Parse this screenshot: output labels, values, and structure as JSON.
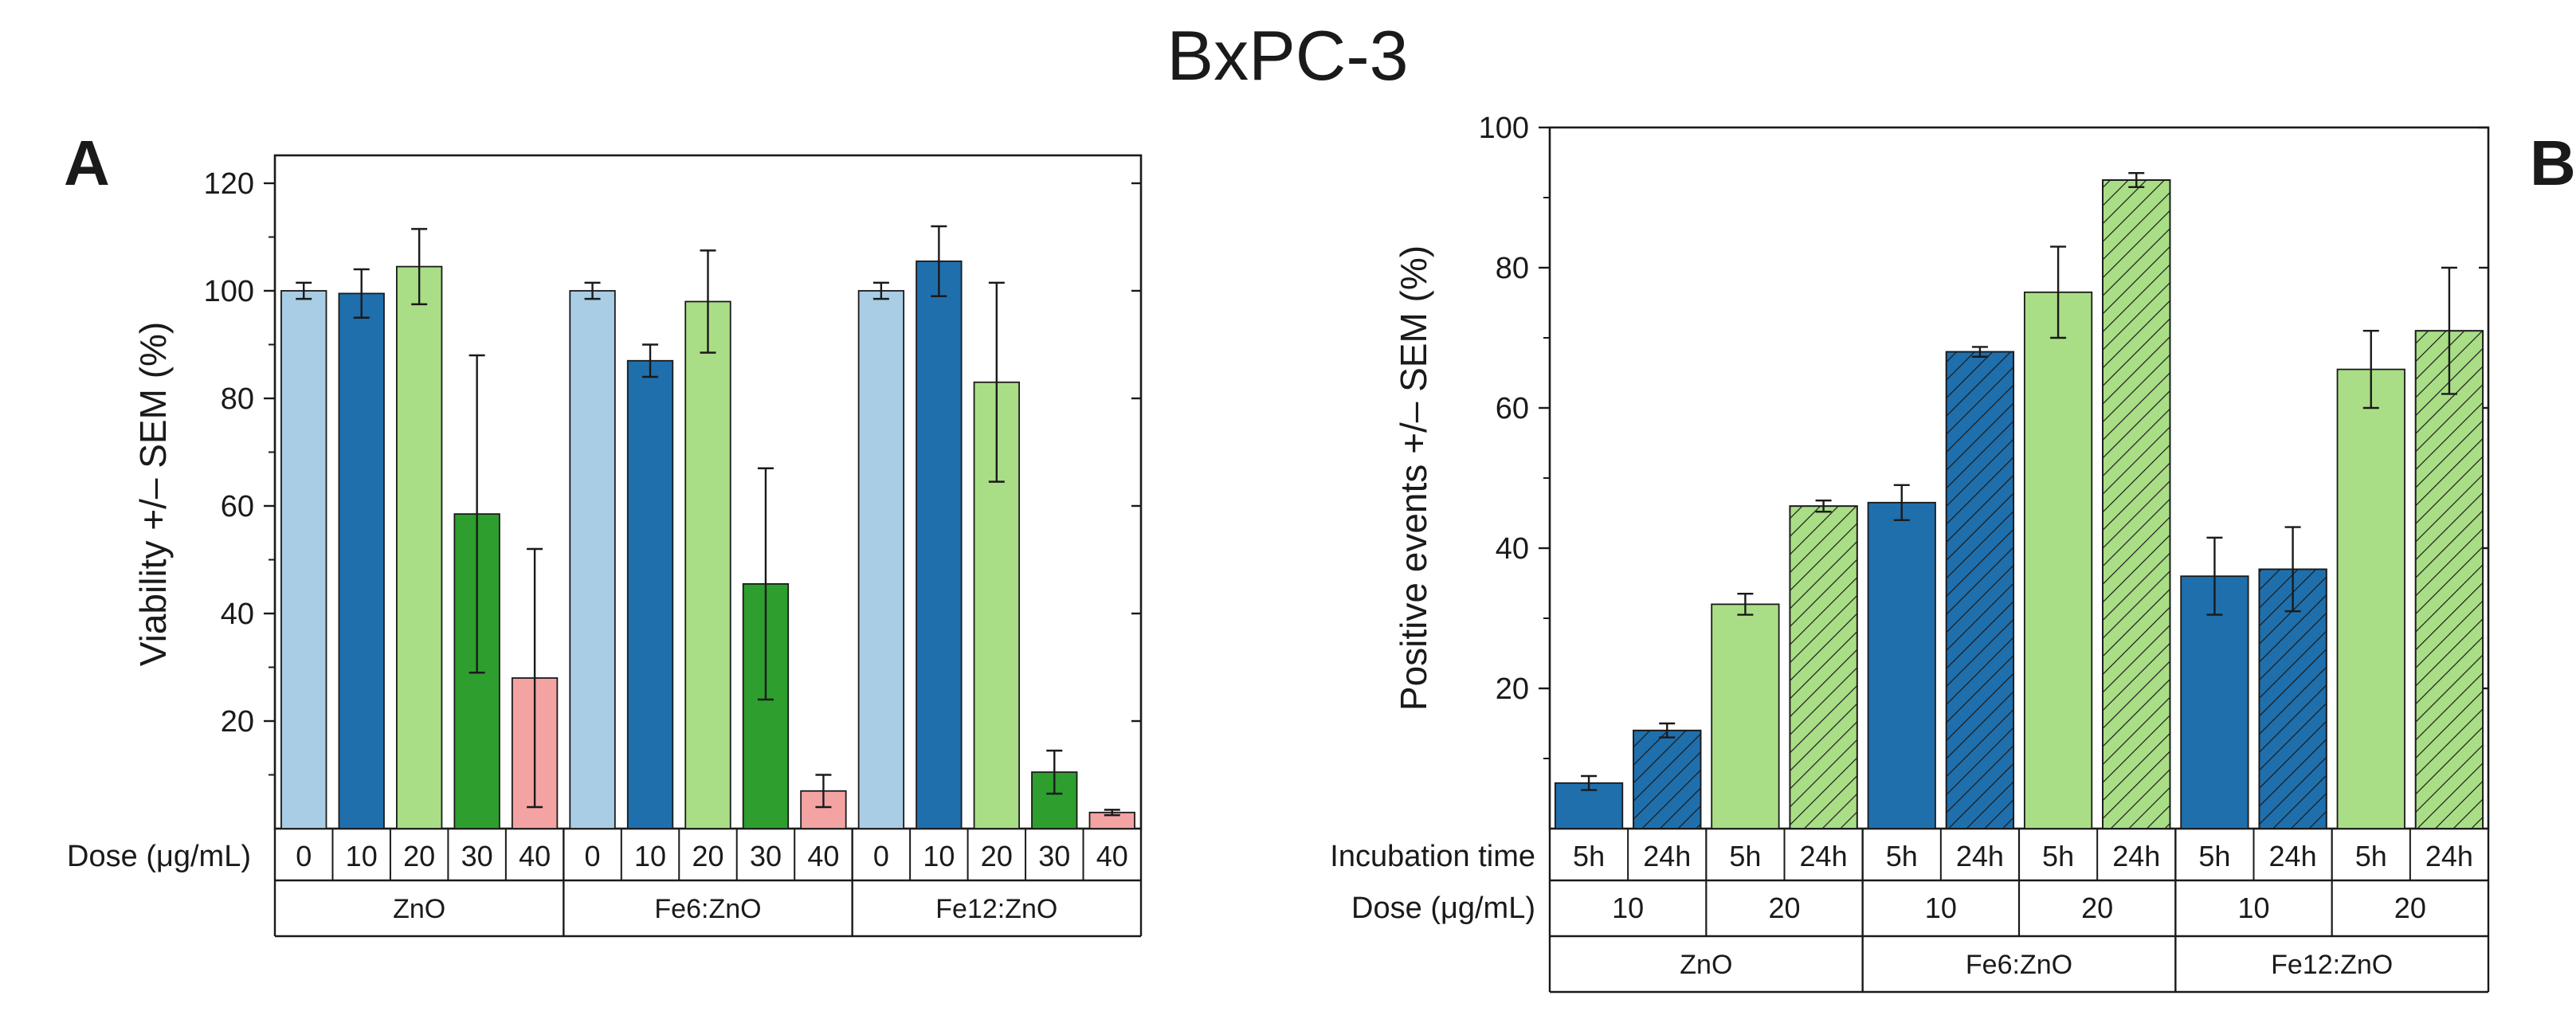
{
  "figure": {
    "title": "BxPC-3"
  },
  "chart_data": [
    {
      "panel": "A",
      "type": "bar",
      "ylabel": "Viability +/– SEM (%)",
      "ylim": [
        0,
        125
      ],
      "yticks": [
        20,
        40,
        60,
        80,
        100,
        120
      ],
      "row_labels": {
        "dose": "Dose (μg/mL)"
      },
      "groups": [
        "ZnO",
        "Fe6:ZnO",
        "Fe12:ZnO"
      ],
      "doses": [
        0,
        10,
        20,
        30,
        40
      ],
      "dose_colors": {
        "0": "#a9cde4",
        "10": "#1f6fad",
        "20": "#aade86",
        "30": "#2e9e2e",
        "40": "#f4a3a3"
      },
      "bars": [
        {
          "group": "ZnO",
          "dose": 0,
          "value": 100,
          "err": 1.5
        },
        {
          "group": "ZnO",
          "dose": 10,
          "value": 99.5,
          "err": 4.5
        },
        {
          "group": "ZnO",
          "dose": 20,
          "value": 104.5,
          "err": 7
        },
        {
          "group": "ZnO",
          "dose": 30,
          "value": 58.5,
          "err": 29.5
        },
        {
          "group": "ZnO",
          "dose": 40,
          "value": 28,
          "err": 24
        },
        {
          "group": "Fe6:ZnO",
          "dose": 0,
          "value": 100,
          "err": 1.5
        },
        {
          "group": "Fe6:ZnO",
          "dose": 10,
          "value": 87,
          "err": 3
        },
        {
          "group": "Fe6:ZnO",
          "dose": 20,
          "value": 98,
          "err": 9.5
        },
        {
          "group": "Fe6:ZnO",
          "dose": 30,
          "value": 45.5,
          "err": 21.5
        },
        {
          "group": "Fe6:ZnO",
          "dose": 40,
          "value": 7,
          "err": 3
        },
        {
          "group": "Fe12:ZnO",
          "dose": 0,
          "value": 100,
          "err": 1.5
        },
        {
          "group": "Fe12:ZnO",
          "dose": 10,
          "value": 105.5,
          "err": 6.5
        },
        {
          "group": "Fe12:ZnO",
          "dose": 20,
          "value": 83,
          "err": 18.5
        },
        {
          "group": "Fe12:ZnO",
          "dose": 30,
          "value": 10.5,
          "err": 4
        },
        {
          "group": "Fe12:ZnO",
          "dose": 40,
          "value": 3,
          "err": 0.5
        }
      ]
    },
    {
      "panel": "B",
      "type": "bar",
      "ylabel": "Positive events +/– SEM (%)",
      "ylim": [
        0,
        100
      ],
      "yticks": [
        20,
        40,
        60,
        80,
        100
      ],
      "row_labels": {
        "time": "Incubation time",
        "dose": "Dose (μg/mL)"
      },
      "groups": [
        "ZnO",
        "Fe6:ZnO",
        "Fe12:ZnO"
      ],
      "doses": [
        10,
        20
      ],
      "times": [
        "5h",
        "24h"
      ],
      "dose_colors": {
        "10": "#1f6fad",
        "20": "#aade86"
      },
      "hatched_time": "24h",
      "bars": [
        {
          "group": "ZnO",
          "dose": 10,
          "time": "5h",
          "value": 6.5,
          "err": 1
        },
        {
          "group": "ZnO",
          "dose": 10,
          "time": "24h",
          "value": 14,
          "err": 1
        },
        {
          "group": "ZnO",
          "dose": 20,
          "time": "5h",
          "value": 32,
          "err": 1.5
        },
        {
          "group": "ZnO",
          "dose": 20,
          "time": "24h",
          "value": 46,
          "err": 0.8
        },
        {
          "group": "Fe6:ZnO",
          "dose": 10,
          "time": "5h",
          "value": 46.5,
          "err": 2.5
        },
        {
          "group": "Fe6:ZnO",
          "dose": 10,
          "time": "24h",
          "value": 68,
          "err": 0.7
        },
        {
          "group": "Fe6:ZnO",
          "dose": 20,
          "time": "5h",
          "value": 76.5,
          "err": 6.5
        },
        {
          "group": "Fe6:ZnO",
          "dose": 20,
          "time": "24h",
          "value": 92.5,
          "err": 1
        },
        {
          "group": "Fe12:ZnO",
          "dose": 10,
          "time": "5h",
          "value": 36,
          "err": 5.5
        },
        {
          "group": "Fe12:ZnO",
          "dose": 10,
          "time": "24h",
          "value": 37,
          "err": 6
        },
        {
          "group": "Fe12:ZnO",
          "dose": 20,
          "time": "5h",
          "value": 65.5,
          "err": 5.5
        },
        {
          "group": "Fe12:ZnO",
          "dose": 20,
          "time": "24h",
          "value": 71,
          "err": 9
        }
      ]
    }
  ]
}
